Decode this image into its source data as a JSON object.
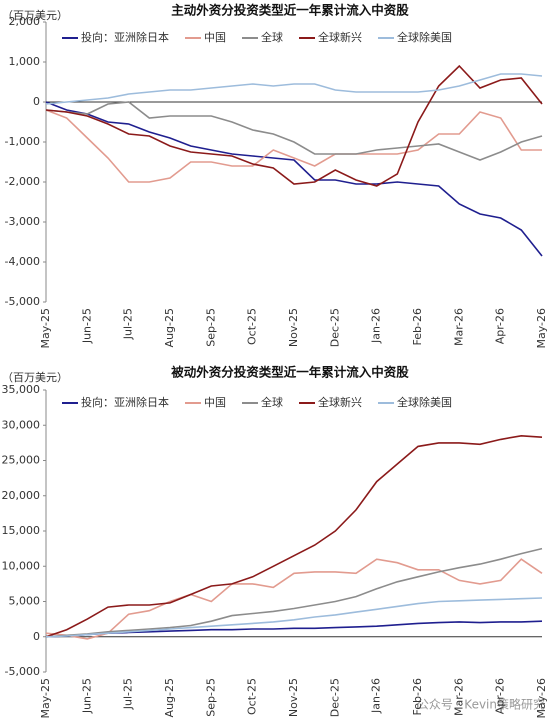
{
  "watermark": "公众号 · Kevin策略研究",
  "chart_data": [
    {
      "type": "line",
      "title": "主动外资分投资类型近一年累计流入中资股",
      "y_label": "（百万美元）",
      "categories": [
        "May-25",
        null,
        "Jun-25",
        null,
        "Jul-25",
        null,
        "Aug-25",
        null,
        "Sep-25",
        null,
        "Oct-25",
        null,
        "Nov-25",
        null,
        "Dec-25",
        null,
        "Jan-26",
        null,
        "Feb-26",
        null,
        "Mar-26",
        null,
        "Apr-26",
        null,
        "May-26"
      ],
      "ylim": [
        -5000,
        2000
      ],
      "yticks": [
        {
          "value": -5000,
          "label": "-5,000"
        },
        {
          "value": -4000,
          "label": "-4,000"
        },
        {
          "value": -3000,
          "label": "-3,000"
        },
        {
          "value": -2000,
          "label": "-2,000"
        },
        {
          "value": -1000,
          "label": "-1,000"
        },
        0,
        {
          "value": 1000,
          "label": "1,000"
        },
        {
          "value": 2000,
          "label": "2,000"
        }
      ],
      "series": [
        {
          "name": "投向：亚洲除日本",
          "color": "#1f1f8f",
          "values": [
            0,
            -200,
            -300,
            -500,
            -550,
            -750,
            -900,
            -1100,
            -1200,
            -1300,
            -1350,
            -1400,
            -1450,
            -1950,
            -1950,
            -2050,
            -2050,
            -2000,
            -2050,
            -2100,
            -2550,
            -2800,
            -2900,
            -3200,
            -3850
          ]
        },
        {
          "name": "中国",
          "color": "#e29b8f",
          "values": [
            -200,
            -400,
            -900,
            -1400,
            -2000,
            -2000,
            -1900,
            -1500,
            -1500,
            -1600,
            -1600,
            -1200,
            -1400,
            -1600,
            -1300,
            -1300,
            -1300,
            -1300,
            -1200,
            -800,
            -800,
            -250,
            -400,
            -1200,
            -1200
          ]
        },
        {
          "name": "全球",
          "color": "#8c8c8c",
          "values": [
            -200,
            -250,
            -300,
            -50,
            0,
            -400,
            -350,
            -350,
            -350,
            -500,
            -700,
            -800,
            -1000,
            -1300,
            -1300,
            -1300,
            -1200,
            -1150,
            -1100,
            -1050,
            -1250,
            -1450,
            -1250,
            -1000,
            -850
          ]
        },
        {
          "name": "全球新兴",
          "color": "#8b1a1a",
          "values": [
            -200,
            -250,
            -350,
            -550,
            -800,
            -850,
            -1100,
            -1250,
            -1300,
            -1350,
            -1550,
            -1650,
            -2050,
            -2000,
            -1700,
            -1950,
            -2100,
            -1800,
            -500,
            400,
            900,
            350,
            550,
            600,
            -50
          ]
        },
        {
          "name": "全球除美国",
          "color": "#9dbcdc",
          "values": [
            -50,
            0,
            50,
            100,
            200,
            250,
            300,
            300,
            350,
            400,
            450,
            400,
            450,
            450,
            300,
            250,
            250,
            250,
            250,
            300,
            400,
            550,
            700,
            700,
            650
          ]
        }
      ]
    },
    {
      "type": "line",
      "title": "被动外资分投资类型近一年累计流入中资股",
      "y_label": "（百万美元）",
      "categories": [
        "May-25",
        null,
        "Jun-25",
        null,
        "Jul-25",
        null,
        "Aug-25",
        null,
        "Sep-25",
        null,
        "Oct-25",
        null,
        "Nov-25",
        null,
        "Dec-25",
        null,
        "Jan-26",
        null,
        "Feb-26",
        null,
        "Mar-26",
        null,
        "Apr-26",
        null,
        "May-26"
      ],
      "ylim": [
        -5000,
        35000
      ],
      "yticks": [
        {
          "value": -5000,
          "label": "-5,000"
        },
        0,
        {
          "value": 5000,
          "label": "5,000"
        },
        {
          "value": 10000,
          "label": "10,000"
        },
        {
          "value": 15000,
          "label": "15,000"
        },
        {
          "value": 20000,
          "label": "20,000"
        },
        {
          "value": 25000,
          "label": "25,000"
        },
        {
          "value": 30000,
          "label": "30,000"
        },
        {
          "value": 35000,
          "label": "35,000"
        }
      ],
      "series": [
        {
          "name": "投向：亚洲除日本",
          "color": "#1f1f8f",
          "values": [
            0,
            100,
            300,
            500,
            600,
            700,
            800,
            900,
            1000,
            1000,
            1100,
            1100,
            1200,
            1200,
            1300,
            1400,
            1500,
            1700,
            1900,
            2000,
            2100,
            2000,
            2100,
            2100,
            2200
          ]
        },
        {
          "name": "中国",
          "color": "#e29b8f",
          "values": [
            500,
            200,
            -300,
            500,
            3200,
            3700,
            5000,
            6000,
            5000,
            7500,
            7500,
            7000,
            9000,
            9200,
            9200,
            9000,
            11000,
            10500,
            9500,
            9500,
            8000,
            7500,
            8000,
            11000,
            9000
          ]
        },
        {
          "name": "全球",
          "color": "#8c8c8c",
          "values": [
            0,
            200,
            400,
            700,
            900,
            1100,
            1300,
            1600,
            2200,
            3000,
            3300,
            3600,
            4000,
            4500,
            5000,
            5700,
            6800,
            7800,
            8500,
            9200,
            9800,
            10300,
            11000,
            11800,
            12500
          ]
        },
        {
          "name": "全球新兴",
          "color": "#8b1a1a",
          "values": [
            0,
            1000,
            2500,
            4200,
            4500,
            4500,
            4800,
            6000,
            7200,
            7500,
            8500,
            10000,
            11500,
            13000,
            15000,
            18000,
            22000,
            24500,
            27000,
            27500,
            27500,
            27300,
            28000,
            28500,
            28300
          ]
        },
        {
          "name": "全球除美国",
          "color": "#9dbcdc",
          "values": [
            0,
            100,
            300,
            500,
            700,
            900,
            1100,
            1300,
            1500,
            1700,
            1900,
            2100,
            2400,
            2800,
            3100,
            3500,
            3900,
            4300,
            4700,
            5000,
            5100,
            5200,
            5300,
            5400,
            5500
          ]
        }
      ]
    }
  ]
}
